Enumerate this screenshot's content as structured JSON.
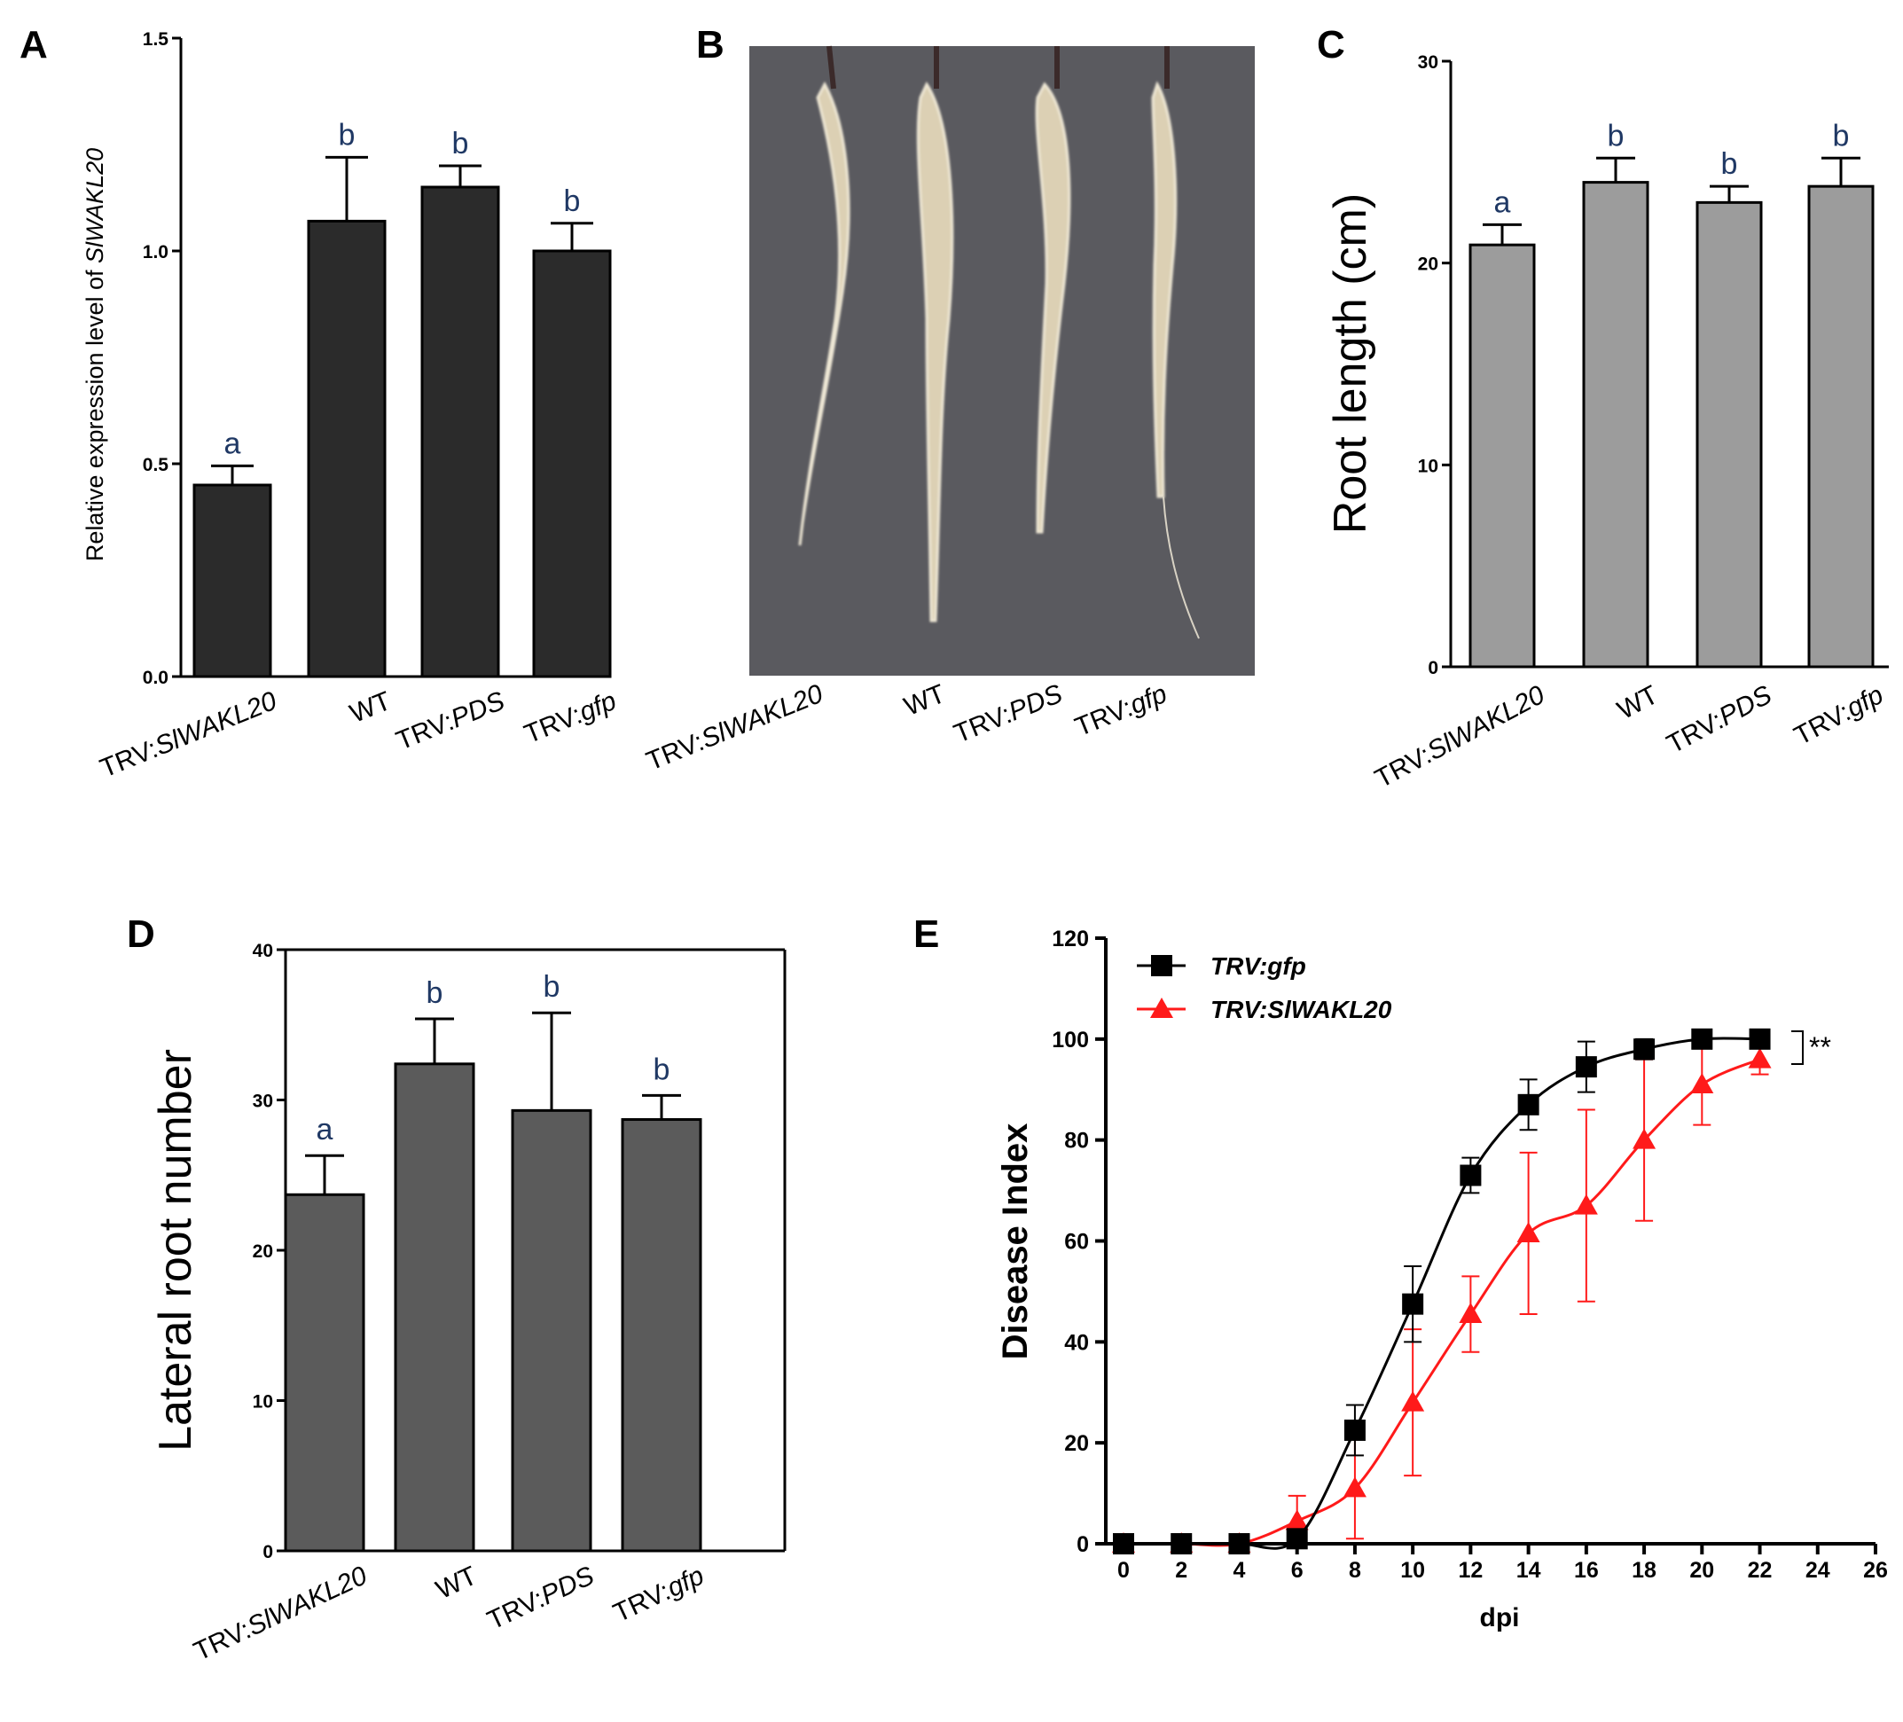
{
  "panels": {
    "A": "A",
    "B": "B",
    "C": "C",
    "D": "D",
    "E": "E"
  },
  "colors": {
    "A_bar": "#2b2b2b",
    "C_bar": "#9c9c9c",
    "D_bar": "#5b5b5b",
    "sig_text": "#1f3864",
    "E_gfp": "#000000",
    "E_wakl": "#ff1a1a",
    "photo_bg": "#5a5a5f"
  },
  "photo_B": {
    "label": "B",
    "categories": [
      {
        "pre": "TRV:",
        "it": "SlWAKL20"
      },
      {
        "pre": "WT",
        "it": ""
      },
      {
        "pre": "TRV:",
        "it": "PDS"
      },
      {
        "pre": "TRV:",
        "it": "gfp"
      }
    ]
  },
  "chart_data": [
    {
      "id": "A",
      "type": "bar",
      "ylabel_prefix": "Relative expression level of ",
      "ylabel_italic": "SlWAKL20",
      "ylim": [
        0,
        1.5
      ],
      "yticks": [
        "0.0",
        "0.5",
        "1.0",
        "1.5"
      ],
      "ytick_values": [
        0,
        0.5,
        1.0,
        1.5
      ],
      "categories": [
        {
          "pre": "TRV:",
          "it": "SlWAKL20"
        },
        {
          "pre": "WT",
          "it": ""
        },
        {
          "pre": "TRV:",
          "it": "PDS"
        },
        {
          "pre": "TRV:",
          "it": "gfp"
        }
      ],
      "values": [
        0.45,
        1.07,
        1.15,
        1.0
      ],
      "errors": [
        0.045,
        0.15,
        0.05,
        0.065
      ],
      "letters": [
        "a",
        "b",
        "b",
        "b"
      ]
    },
    {
      "id": "C",
      "type": "bar",
      "ylabel": "Root length (cm)",
      "ylim": [
        0,
        30
      ],
      "yticks": [
        "0",
        "10",
        "20",
        "30"
      ],
      "ytick_values": [
        0,
        10,
        20,
        30
      ],
      "categories": [
        {
          "pre": "TRV:",
          "it": "SlWAKL20"
        },
        {
          "pre": "WT",
          "it": ""
        },
        {
          "pre": "TRV:",
          "it": "PDS"
        },
        {
          "pre": "TRV:",
          "it": "gfp"
        }
      ],
      "values": [
        20.9,
        24.0,
        23.0,
        23.8
      ],
      "errors": [
        1.0,
        1.2,
        0.8,
        1.4
      ],
      "letters": [
        "a",
        "b",
        "b",
        "b"
      ]
    },
    {
      "id": "D",
      "type": "bar",
      "ylabel": "Lateral root number",
      "ylim": [
        0,
        40
      ],
      "yticks": [
        "0",
        "10",
        "20",
        "30",
        "40"
      ],
      "ytick_values": [
        0,
        10,
        20,
        30,
        40
      ],
      "categories": [
        {
          "pre": "TRV:",
          "it": "SlWAKL20"
        },
        {
          "pre": "WT",
          "it": ""
        },
        {
          "pre": "TRV:",
          "it": "PDS"
        },
        {
          "pre": "TRV:",
          "it": "gfp"
        }
      ],
      "values": [
        23.7,
        32.4,
        29.3,
        28.7
      ],
      "errors": [
        2.6,
        3.0,
        6.5,
        1.6
      ],
      "letters": [
        "a",
        "b",
        "b",
        "b"
      ]
    },
    {
      "id": "E",
      "type": "line",
      "xlabel": "dpi",
      "ylabel": "Disease Index",
      "xlim": [
        0,
        26
      ],
      "ylim": [
        0,
        120
      ],
      "xticks": [
        "0",
        "2",
        "4",
        "6",
        "8",
        "10",
        "12",
        "14",
        "16",
        "18",
        "20",
        "22",
        "24",
        "26"
      ],
      "xtick_values": [
        0,
        2,
        4,
        6,
        8,
        10,
        12,
        14,
        16,
        18,
        20,
        22,
        24,
        26
      ],
      "yticks": [
        "0",
        "20",
        "40",
        "60",
        "80",
        "100",
        "120"
      ],
      "ytick_values": [
        0,
        20,
        40,
        60,
        80,
        100,
        120
      ],
      "significance": "**",
      "series": [
        {
          "name": "TRV:gfp",
          "marker": "square",
          "x": [
            0,
            2,
            4,
            6,
            8,
            10,
            12,
            14,
            16,
            18,
            20,
            22
          ],
          "y": [
            0,
            0,
            0,
            1,
            22.5,
            47.5,
            73,
            87,
            94.5,
            98,
            100,
            100
          ],
          "err": [
            0,
            0,
            0,
            0,
            5,
            7.5,
            3.5,
            5,
            5,
            2,
            0.5,
            0.5
          ]
        },
        {
          "name": "TRV:SlWAKL20",
          "marker": "triangle",
          "x": [
            0,
            2,
            4,
            6,
            8,
            10,
            12,
            14,
            16,
            18,
            20,
            22
          ],
          "y": [
            0,
            0,
            0,
            4.5,
            11,
            28,
            45.5,
            61.5,
            67,
            80,
            91,
            96
          ],
          "err": [
            0,
            0,
            0,
            5,
            10,
            14.5,
            7.5,
            16,
            19,
            16,
            8,
            3
          ]
        }
      ]
    }
  ]
}
